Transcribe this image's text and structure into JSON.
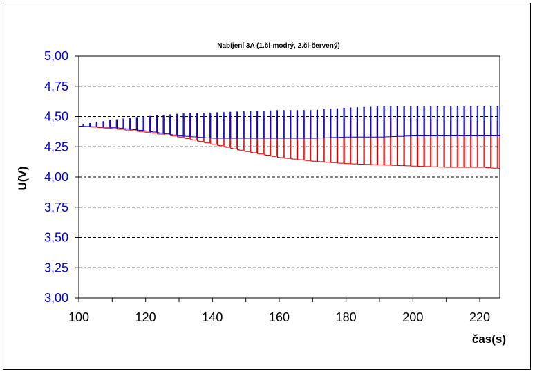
{
  "chart_data": {
    "type": "line",
    "title": "Nabíjení 3A     (1.čl-modrý, 2.čl-červený)",
    "xlabel": "čas(s)",
    "ylabel": "U(V)",
    "xlim": [
      100,
      226
    ],
    "ylim": [
      3.0,
      5.0
    ],
    "x_ticks": [
      100,
      120,
      140,
      160,
      180,
      200,
      220
    ],
    "x_tick_labels": [
      "100",
      "120",
      "140",
      "160",
      "180",
      "200",
      "220"
    ],
    "y_ticks": [
      3.0,
      3.25,
      3.5,
      3.75,
      4.0,
      4.25,
      4.5,
      4.75,
      5.0
    ],
    "y_tick_labels": [
      "3,00",
      "3,25",
      "3,50",
      "3,75",
      "4,00",
      "4,25",
      "4,50",
      "4,75",
      "5,00"
    ],
    "grid": "horizontal dashed",
    "legend": "none",
    "pulse_period_s": 2.0,
    "series": [
      {
        "color": "#0000cc",
        "x": [
          100,
          110,
          120,
          130,
          140,
          150,
          160,
          170,
          180,
          190,
          200,
          210,
          220,
          226
        ],
        "low": [
          4.42,
          4.41,
          4.38,
          4.34,
          4.32,
          4.32,
          4.32,
          4.32,
          4.33,
          4.33,
          4.34,
          4.34,
          4.34,
          4.34
        ],
        "high": [
          4.43,
          4.47,
          4.5,
          4.52,
          4.53,
          4.54,
          4.55,
          4.55,
          4.57,
          4.58,
          4.58,
          4.58,
          4.58,
          4.58
        ]
      },
      {
        "color": "#dd0000",
        "x": [
          100,
          110,
          120,
          130,
          140,
          150,
          160,
          170,
          180,
          190,
          200,
          210,
          220,
          226
        ],
        "low": [
          4.42,
          4.4,
          4.37,
          4.33,
          4.27,
          4.21,
          4.16,
          4.13,
          4.11,
          4.1,
          4.09,
          4.08,
          4.08,
          4.07
        ],
        "high": [
          4.43,
          4.46,
          4.49,
          4.5,
          4.5,
          4.5,
          4.5,
          4.5,
          4.49,
          4.49,
          4.48,
          4.47,
          4.46,
          4.46
        ]
      }
    ]
  }
}
